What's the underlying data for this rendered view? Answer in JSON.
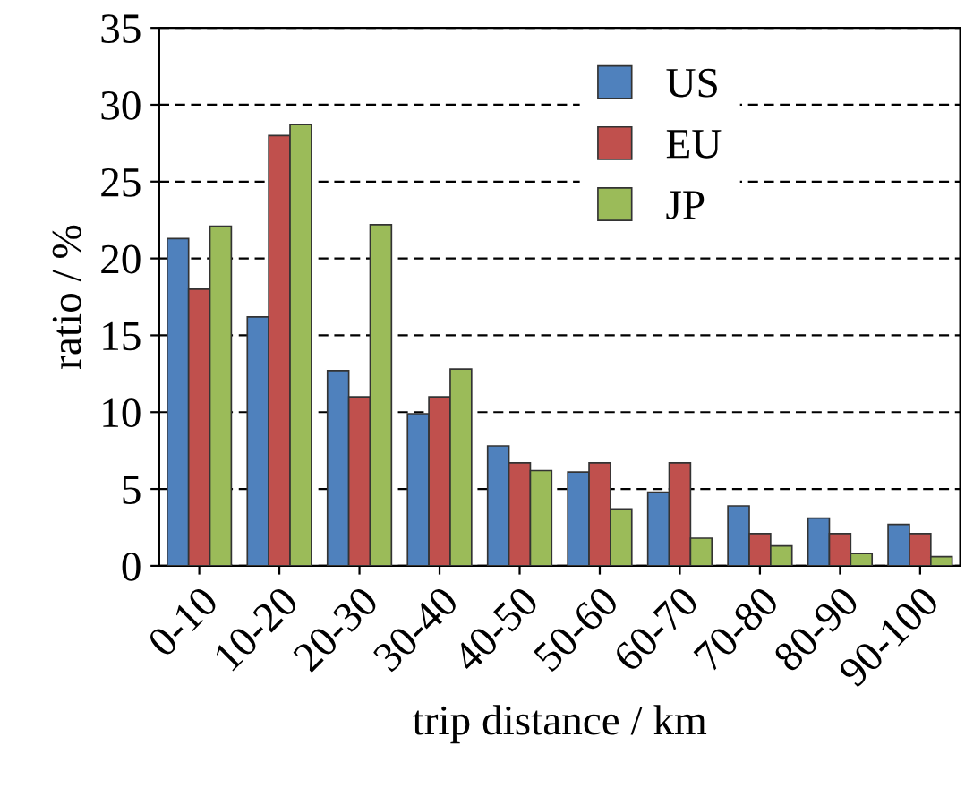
{
  "chart_data": {
    "type": "bar",
    "xlabel": "trip distance / km",
    "ylabel": "ratio / %",
    "categories": [
      "0-10",
      "10-20",
      "20-30",
      "30-40",
      "40-50",
      "50-60",
      "60-70",
      "70-80",
      "80-90",
      "90-100"
    ],
    "series": [
      {
        "name": "US",
        "color": "#4f81bd",
        "values": [
          21.3,
          16.2,
          12.7,
          9.9,
          7.8,
          6.1,
          4.8,
          3.9,
          3.1,
          2.7
        ]
      },
      {
        "name": "EU",
        "color": "#c0504d",
        "values": [
          18.0,
          28.0,
          11.0,
          11.0,
          6.7,
          6.7,
          6.7,
          2.1,
          2.1,
          2.1
        ]
      },
      {
        "name": "JP",
        "color": "#9bbb59",
        "values": [
          22.1,
          28.7,
          22.2,
          12.8,
          6.2,
          3.7,
          1.8,
          1.3,
          0.8,
          0.6
        ]
      }
    ],
    "ylim": [
      0,
      35
    ],
    "yticks": [
      0,
      5,
      10,
      15,
      20,
      25,
      30,
      35
    ],
    "grid": "y",
    "legend": "top right"
  }
}
